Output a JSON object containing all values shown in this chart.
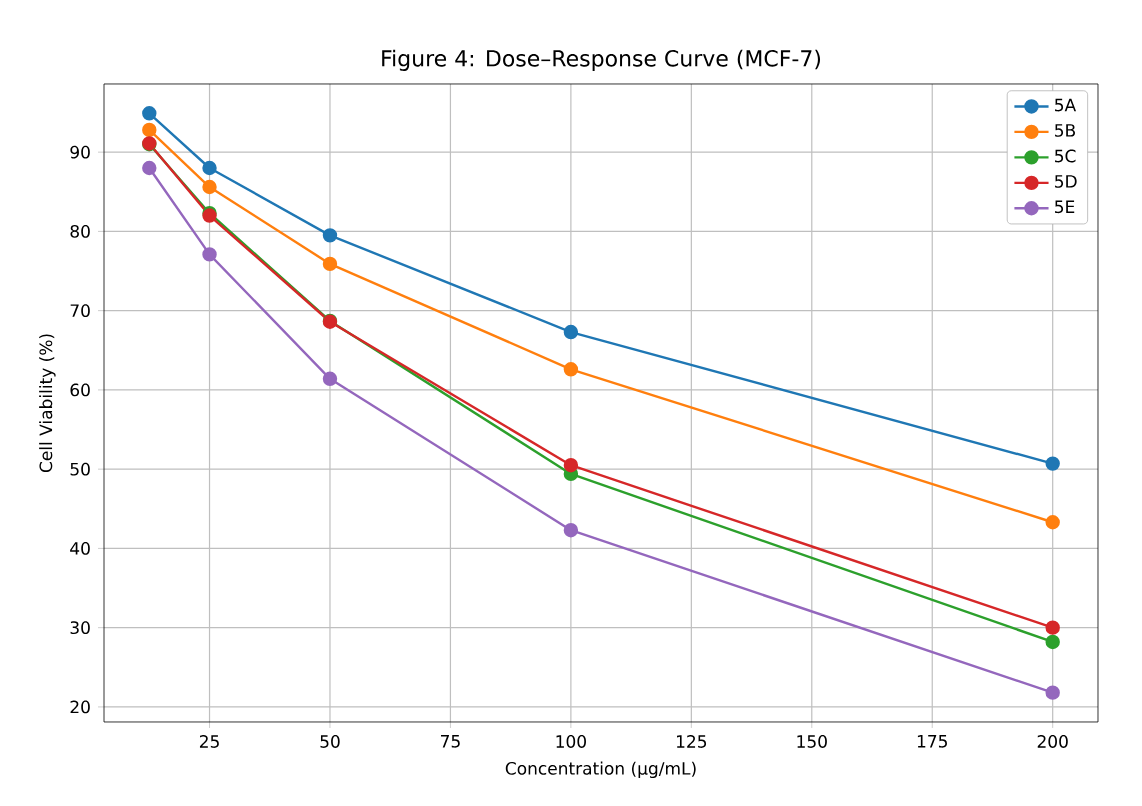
{
  "chart_data": {
    "type": "line",
    "title": "Figure 4: Dose–Response Curve (MCF-7)",
    "xlabel": "Concentration (µg/mL)",
    "ylabel": "Cell Viability (%)",
    "x": [
      12.5,
      25,
      50,
      100,
      200
    ],
    "series": [
      {
        "name": "5A",
        "color": "#1f77b4",
        "values": [
          94.9,
          88.0,
          79.5,
          67.3,
          50.7
        ]
      },
      {
        "name": "5B",
        "color": "#ff7f0e",
        "values": [
          92.8,
          85.6,
          75.9,
          62.6,
          43.3
        ]
      },
      {
        "name": "5C",
        "color": "#2ca02c",
        "values": [
          91.0,
          82.3,
          68.7,
          49.4,
          28.2
        ]
      },
      {
        "name": "5D",
        "color": "#d62728",
        "values": [
          91.1,
          82.0,
          68.6,
          50.5,
          30.0
        ]
      },
      {
        "name": "5E",
        "color": "#9467bd",
        "values": [
          88.0,
          77.1,
          61.4,
          42.3,
          21.8
        ]
      }
    ],
    "xlim": [
      3.1,
      209.4
    ],
    "ylim": [
      18.1,
      98.6
    ],
    "xticks": [
      25,
      50,
      75,
      100,
      125,
      150,
      175,
      200
    ],
    "yticks": [
      20,
      30,
      40,
      50,
      60,
      70,
      80,
      90
    ],
    "grid": true,
    "legend": "top right",
    "marker": "circle",
    "line_style": "solid"
  }
}
